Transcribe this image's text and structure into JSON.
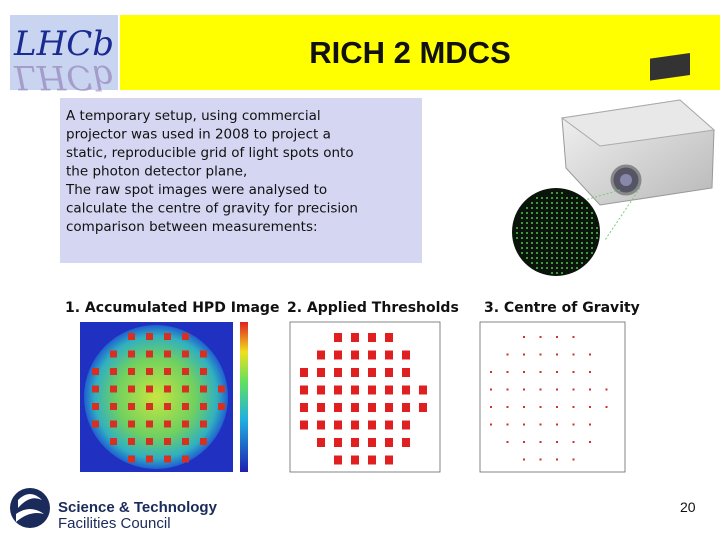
{
  "header": {
    "title": "RICH 2 MDCS",
    "logo": "LHCb"
  },
  "body": {
    "lines": [
      "A temporary setup, using commercial",
      "projector was used in 2008 to project a",
      "static, reproducible grid of light spots onto",
      "the photon detector plane,",
      "The raw spot images were analysed to",
      "calculate the centre of gravity for precision",
      "comparison between measurements:"
    ]
  },
  "panels": [
    {
      "label": "1. Accumulated HPD Image"
    },
    {
      "label": "2. Applied Thresholds"
    },
    {
      "label": "3. Centre of Gravity"
    }
  ],
  "footer": {
    "org_lines": [
      "Science & Technology",
      "Facilities Council"
    ],
    "page_number": "20"
  }
}
